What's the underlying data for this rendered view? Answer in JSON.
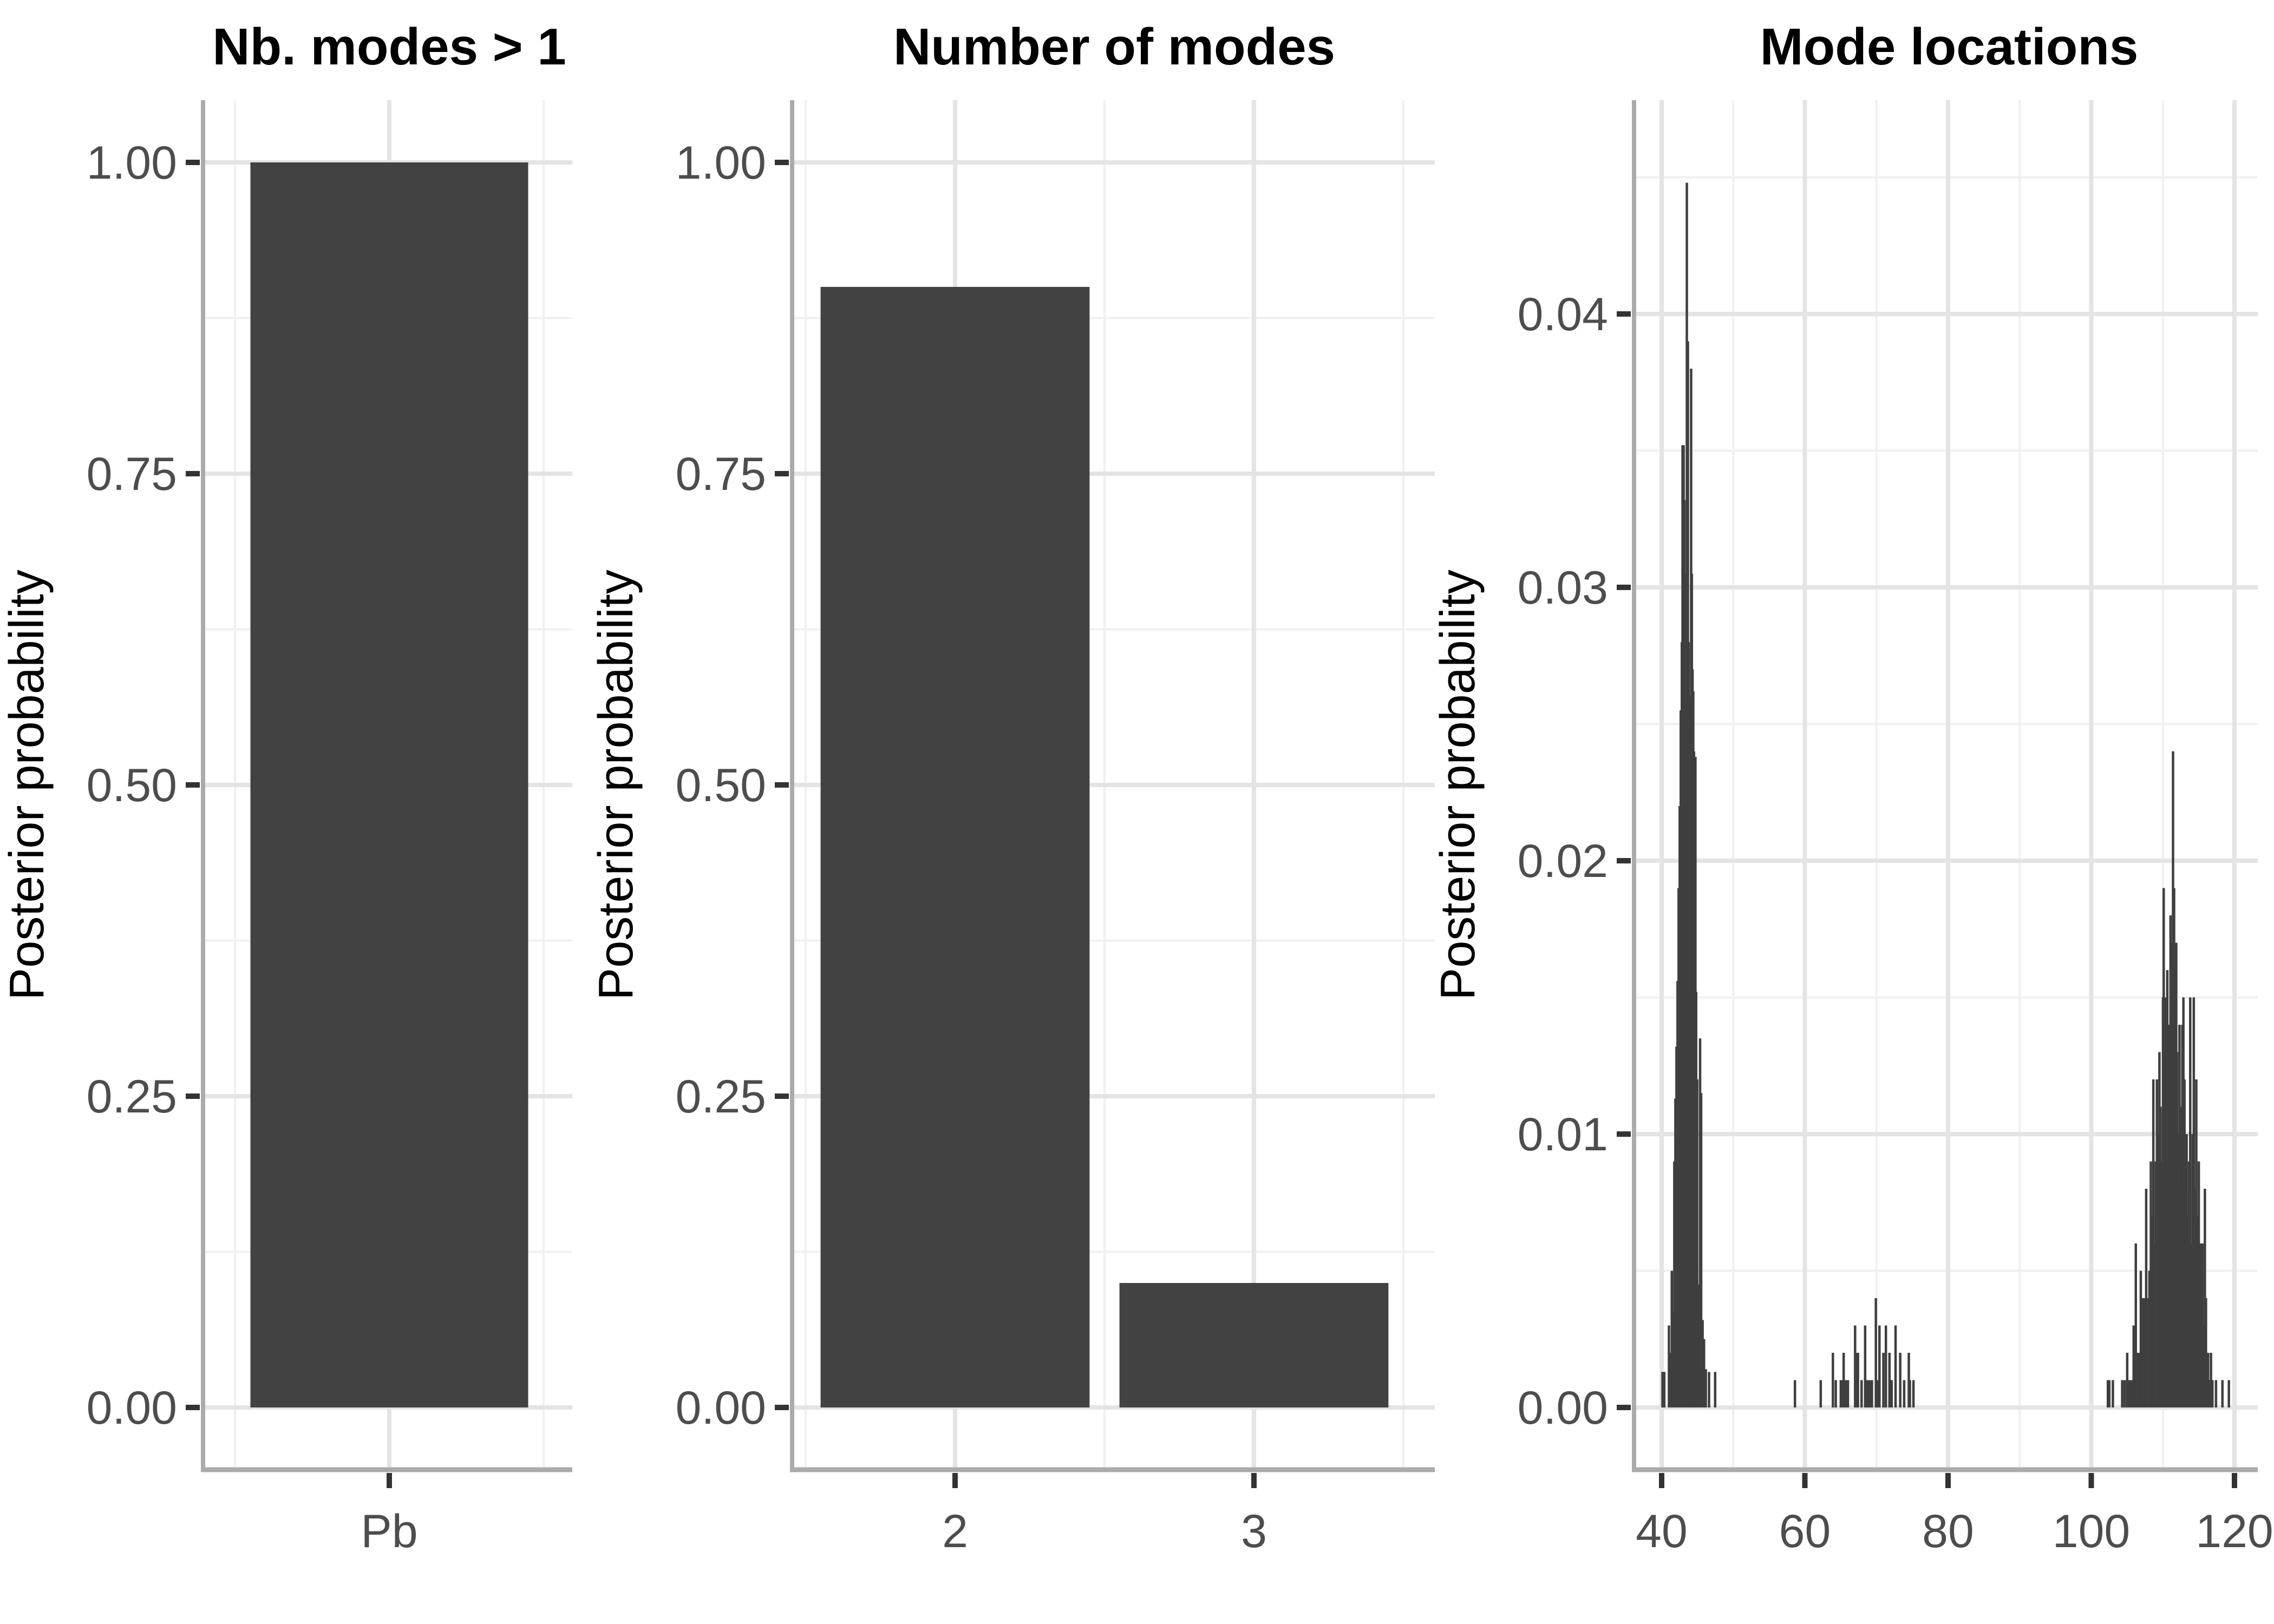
{
  "figure": {
    "background": "#ffffff",
    "colors": {
      "bar_fill": "#424242",
      "spike_fill": "#3f3f3f",
      "grid_major": "#e4e4e4",
      "grid_minor": "#f0f0f0",
      "axis_line": "#ababab",
      "tick_mark": "#333333",
      "tick_label": "#4d4d4d",
      "title": "#000000"
    }
  },
  "chart_data": [
    {
      "type": "bar",
      "title": "Nb. modes > 1",
      "ylabel": "Posterior probability",
      "xlabel": "",
      "categories": [
        "Pb"
      ],
      "values": [
        1.0
      ],
      "ylim": [
        0,
        1.05
      ],
      "yticks": [
        0,
        0.25,
        0.5,
        0.75,
        1.0
      ],
      "ytick_labels": [
        "0.00",
        "0.25",
        "0.50",
        "0.75",
        "1.00"
      ],
      "yminor": [
        0.125,
        0.375,
        0.625,
        0.875
      ],
      "grid": "major+minor",
      "legend": "none"
    },
    {
      "type": "bar",
      "title": "Number of modes",
      "ylabel": "Posterior probability",
      "xlabel": "",
      "categories": [
        "2",
        "3"
      ],
      "values": [
        0.9,
        0.1
      ],
      "ylim": [
        0,
        1.05
      ],
      "yticks": [
        0,
        0.25,
        0.5,
        0.75,
        1.0
      ],
      "ytick_labels": [
        "0.00",
        "0.25",
        "0.50",
        "0.75",
        "1.00"
      ],
      "yminor": [
        0.125,
        0.375,
        0.625,
        0.875
      ],
      "grid": "major+minor",
      "legend": "none"
    },
    {
      "type": "bar",
      "subtype": "spike-histogram",
      "title": "Mode locations",
      "ylabel": "Posterior probability",
      "xlabel": "",
      "xlim": [
        36,
        123.5
      ],
      "ylim": [
        0,
        0.0478
      ],
      "xticks": [
        40,
        60,
        80,
        100,
        120
      ],
      "xtick_labels": [
        "40",
        "60",
        "80",
        "100",
        "120"
      ],
      "xminor": [
        50,
        70,
        90,
        110
      ],
      "yticks": [
        0,
        0.01,
        0.02,
        0.03,
        0.04
      ],
      "ytick_labels": [
        "0.00",
        "0.01",
        "0.02",
        "0.03",
        "0.04"
      ],
      "yminor": [
        0.005,
        0.015,
        0.025,
        0.035,
        0.045
      ],
      "grid": "major+minor",
      "legend": "none",
      "x": [
        40.1,
        40.35,
        41.0,
        41.15,
        41.4,
        41.55,
        41.75,
        41.9,
        42.05,
        42.2,
        42.35,
        42.5,
        42.65,
        42.8,
        42.9,
        43.05,
        43.15,
        43.3,
        43.5,
        43.65,
        43.75,
        43.85,
        44.0,
        44.1,
        44.2,
        44.3,
        44.4,
        44.5,
        44.6,
        44.7,
        44.8,
        44.95,
        45.1,
        45.2,
        45.35,
        45.5,
        45.7,
        45.9,
        46.15,
        46.6,
        47.45,
        58.6,
        62.2,
        63.9,
        64.3,
        65.0,
        65.15,
        65.4,
        65.6,
        65.8,
        66.0,
        67.0,
        67.25,
        67.4,
        67.9,
        68.4,
        68.6,
        68.8,
        69.0,
        69.2,
        69.35,
        69.9,
        70.2,
        70.4,
        70.95,
        71.3,
        71.8,
        72.1,
        72.65,
        73.3,
        73.85,
        74.5,
        74.65,
        75.15,
        102.3,
        102.5,
        103.0,
        104.3,
        104.65,
        105.0,
        105.3,
        105.5,
        105.65,
        105.9,
        106.2,
        106.5,
        106.7,
        106.9,
        107.2,
        107.5,
        107.65,
        107.8,
        108.1,
        108.3,
        108.5,
        108.65,
        108.8,
        109.0,
        109.15,
        109.3,
        109.5,
        109.65,
        109.8,
        110.0,
        110.1,
        110.3,
        110.45,
        110.6,
        110.75,
        110.9,
        111.05,
        111.15,
        111.3,
        111.4,
        111.55,
        111.7,
        111.85,
        111.95,
        112.1,
        112.3,
        112.45,
        112.6,
        112.7,
        112.85,
        113.0,
        113.15,
        113.3,
        113.5,
        113.65,
        113.8,
        114.0,
        114.15,
        114.3,
        114.5,
        114.65,
        114.8,
        115.0,
        115.1,
        115.3,
        115.5,
        115.7,
        115.85,
        116.0,
        116.3,
        116.5,
        116.7,
        116.9,
        117.4,
        118.3,
        119.2
      ],
      "values": [
        0.0013,
        0.0013,
        0.003,
        0.002,
        0.005,
        0.0035,
        0.009,
        0.0113,
        0.0132,
        0.0156,
        0.019,
        0.022,
        0.0255,
        0.028,
        0.0352,
        0.0352,
        0.0332,
        0.0305,
        0.0448,
        0.039,
        0.028,
        0.026,
        0.0232,
        0.038,
        0.0305,
        0.027,
        0.0262,
        0.024,
        0.022,
        0.0238,
        0.0152,
        0.012,
        0.0045,
        0.0042,
        0.0135,
        0.0115,
        0.0032,
        0.0025,
        0.0014,
        0.0013,
        0.0013,
        0.001,
        0.001,
        0.002,
        0.001,
        0.001,
        0.001,
        0.002,
        0.001,
        0.001,
        0.001,
        0.003,
        0.002,
        0.002,
        0.001,
        0.003,
        0.001,
        0.001,
        0.001,
        0.001,
        0.001,
        0.004,
        0.001,
        0.003,
        0.002,
        0.003,
        0.002,
        0.001,
        0.003,
        0.002,
        0.001,
        0.002,
        0.001,
        0.001,
        0.001,
        0.001,
        0.001,
        0.001,
        0.001,
        0.002,
        0.001,
        0.001,
        0.001,
        0.003,
        0.006,
        0.002,
        0.002,
        0.005,
        0.004,
        0.004,
        0.008,
        0.004,
        0.005,
        0.009,
        0.007,
        0.012,
        0.006,
        0.009,
        0.012,
        0.01,
        0.013,
        0.011,
        0.009,
        0.015,
        0.019,
        0.015,
        0.013,
        0.016,
        0.011,
        0.014,
        0.018,
        0.012,
        0.017,
        0.024,
        0.019,
        0.016,
        0.017,
        0.013,
        0.01,
        0.014,
        0.011,
        0.009,
        0.014,
        0.015,
        0.012,
        0.008,
        0.01,
        0.007,
        0.009,
        0.015,
        0.006,
        0.01,
        0.015,
        0.008,
        0.012,
        0.007,
        0.009,
        0.004,
        0.006,
        0.006,
        0.003,
        0.008,
        0.004,
        0.002,
        0.001,
        0.002,
        0.001,
        0.001,
        0.001,
        0.001
      ]
    }
  ]
}
